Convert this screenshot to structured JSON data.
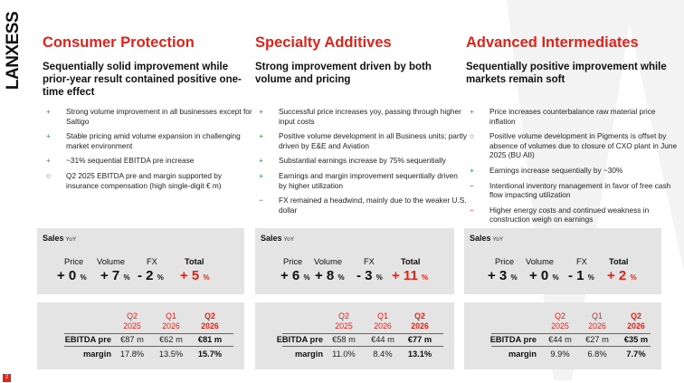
{
  "logo": "LANXESS",
  "page_number": "2",
  "colors": {
    "accent_red": "#e2231a",
    "plus_green": "#2e9c46",
    "panel_grey": "#e4e4e4"
  },
  "columns": [
    {
      "title": "Consumer Protection",
      "subtitle": "Sequentially solid improvement while prior-year result contained positive one-time effect",
      "bullets": [
        {
          "symbol": "+",
          "text": "Strong volume improvement in all businesses except for  Saltigo"
        },
        {
          "symbol": "+",
          "text": "Stable pricing amid volume expansion in challenging market environment"
        },
        {
          "symbol": "+",
          "text": "~31% sequential EBITDA pre increase"
        },
        {
          "symbol": "○",
          "text": "Q2 2025 EBITDA pre and margin supported by insurance compensation (high single-digit € m)"
        }
      ],
      "sales": {
        "label": "Sales",
        "yoy": "YoY",
        "headers": {
          "price": "Price",
          "volume": "Volume",
          "fx": "FX",
          "total": "Total"
        },
        "price": "+ 0",
        "volume": "+ 7",
        "fx": "- 2",
        "total": "+ 5",
        "pct": "%"
      },
      "ebitda": {
        "periods": [
          {
            "q": "Q2",
            "y": "2025"
          },
          {
            "q": "Q1",
            "y": "2026"
          },
          {
            "q": "Q2",
            "y": "2026"
          }
        ],
        "rows": [
          {
            "label": "EBITDA pre",
            "values": [
              "€87 m",
              "€62 m",
              "€81 m"
            ]
          },
          {
            "label": "margin",
            "values": [
              "17.8%",
              "13.5%",
              "15.7%"
            ]
          }
        ]
      }
    },
    {
      "title": "Specialty Additives",
      "subtitle": "Strong improvement driven by both volume and pricing",
      "bullets": [
        {
          "symbol": "+",
          "text": "Successful price increases yoy, passing through higher input costs"
        },
        {
          "symbol": "+",
          "text": "Positive volume development in all Business units; partly driven by E&E and Aviation"
        },
        {
          "symbol": "+",
          "text": "Substantial earnings increase by 75% sequentially"
        },
        {
          "symbol": "+",
          "text": "Earnings and margin improvement sequentially driven by higher utilization"
        },
        {
          "symbol": "−",
          "text": "FX remained a headwind, mainly due to the weaker U.S. dollar"
        }
      ],
      "sales": {
        "label": "Sales",
        "yoy": "YoY",
        "headers": {
          "price": "Price",
          "volume": "Volume",
          "fx": "FX",
          "total": "Total"
        },
        "price": "+ 6",
        "volume": "+ 8",
        "fx": "- 3",
        "total": "+ 11",
        "pct": "%"
      },
      "ebitda": {
        "periods": [
          {
            "q": "Q2",
            "y": "2025"
          },
          {
            "q": "Q1",
            "y": "2026"
          },
          {
            "q": "Q2",
            "y": "2026"
          }
        ],
        "rows": [
          {
            "label": "EBITDA pre",
            "values": [
              "€58 m",
              "€44 m",
              "€77 m"
            ]
          },
          {
            "label": "margin",
            "values": [
              "11.0%",
              "8.4%",
              "13.1%"
            ]
          }
        ]
      }
    },
    {
      "title": "Advanced Intermediates",
      "subtitle": "Sequentially positive improvement while markets remain soft",
      "bullets": [
        {
          "symbol": "+",
          "text": "Price increases counterbalance raw material price inflation"
        },
        {
          "symbol": "○",
          "text": "Positive volume development in Pigments is offset by absence of volumes due to closure of CXO plant in June 2025 (BU AII)"
        },
        {
          "symbol": "+",
          "text": "Earnings increase sequentially by ~30%"
        },
        {
          "symbol": "−",
          "text": "Intentional inventory management in favor of free cash flow impacting utilization"
        },
        {
          "symbol": "−",
          "text": "Higher energy costs and continued weakness in construction weigh on earnings"
        }
      ],
      "sales": {
        "label": "Sales",
        "yoy": "YoY",
        "headers": {
          "price": "Price",
          "volume": "Volume",
          "fx": "FX",
          "total": "Total"
        },
        "price": "+ 3",
        "volume": "+ 0",
        "fx": "- 1",
        "total": "+ 2",
        "pct": "%"
      },
      "ebitda": {
        "periods": [
          {
            "q": "Q2",
            "y": "2025"
          },
          {
            "q": "Q1",
            "y": "2026"
          },
          {
            "q": "Q2",
            "y": "2026"
          }
        ],
        "rows": [
          {
            "label": "EBITDA pre",
            "values": [
              "€44 m",
              "€27 m",
              "€35 m"
            ]
          },
          {
            "label": "margin",
            "values": [
              "9.9%",
              "6.8%",
              "7.7%"
            ]
          }
        ]
      }
    }
  ]
}
